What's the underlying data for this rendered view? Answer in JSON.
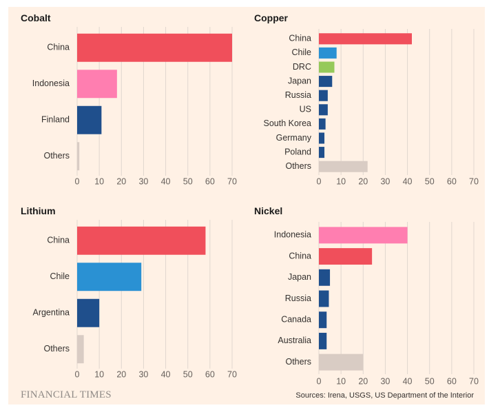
{
  "colors": {
    "background": "#fff1e5",
    "china": "#f04f5b",
    "indonesia": "#ff7eb0",
    "chile": "#2a91d3",
    "drc": "#96c95a",
    "dark_blue": "#1f4f8c",
    "others": "#d9ccc4",
    "grid": "#e0d6cf"
  },
  "chart_data": [
    {
      "type": "bar",
      "orientation": "horizontal",
      "title": "Cobalt",
      "categories": [
        "China",
        "Indonesia",
        "Finland",
        "Others"
      ],
      "values": [
        70,
        18,
        11,
        1
      ],
      "bar_colors": [
        "china",
        "indonesia",
        "dark_blue",
        "others"
      ],
      "xlim": [
        0,
        70
      ],
      "xticks": [
        0,
        10,
        20,
        30,
        40,
        50,
        60,
        70
      ],
      "grid": true
    },
    {
      "type": "bar",
      "orientation": "horizontal",
      "title": "Copper",
      "categories": [
        "China",
        "Chile",
        "DRC",
        "Japan",
        "Russia",
        "US",
        "South Korea",
        "Germany",
        "Poland",
        "Others"
      ],
      "values": [
        42,
        8,
        7,
        6,
        4,
        4,
        3,
        2.5,
        2.5,
        22
      ],
      "bar_colors": [
        "china",
        "chile",
        "drc",
        "dark_blue",
        "dark_blue",
        "dark_blue",
        "dark_blue",
        "dark_blue",
        "dark_blue",
        "others"
      ],
      "xlim": [
        0,
        70
      ],
      "xticks": [
        0,
        10,
        20,
        30,
        40,
        50,
        60,
        70
      ],
      "grid": true
    },
    {
      "type": "bar",
      "orientation": "horizontal",
      "title": "Lithium",
      "categories": [
        "China",
        "Chile",
        "Argentina",
        "Others"
      ],
      "values": [
        58,
        29,
        10,
        3
      ],
      "bar_colors": [
        "china",
        "chile",
        "dark_blue",
        "others"
      ],
      "xlim": [
        0,
        70
      ],
      "xticks": [
        0,
        10,
        20,
        30,
        40,
        50,
        60,
        70
      ],
      "grid": true
    },
    {
      "type": "bar",
      "orientation": "horizontal",
      "title": "Nickel",
      "categories": [
        "Indonesia",
        "China",
        "Japan",
        "Russia",
        "Canada",
        "Australia",
        "Others"
      ],
      "values": [
        40,
        24,
        5,
        4.5,
        3.5,
        3.5,
        20
      ],
      "bar_colors": [
        "indonesia",
        "china",
        "dark_blue",
        "dark_blue",
        "dark_blue",
        "dark_blue",
        "others"
      ],
      "xlim": [
        0,
        70
      ],
      "xticks": [
        0,
        10,
        20,
        30,
        40,
        50,
        60,
        70
      ],
      "grid": true
    }
  ],
  "footer": {
    "brand": "FINANCIAL TIMES",
    "source": "Sources: Irena, USGS, US Department of the Interior"
  }
}
